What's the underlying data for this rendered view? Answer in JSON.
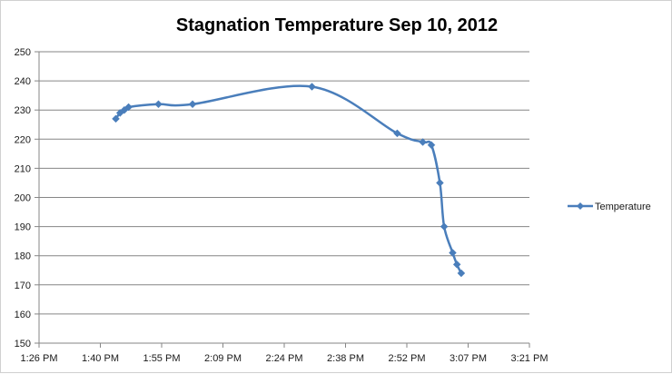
{
  "chart_data": {
    "type": "line",
    "title": "Stagnation Temperature Sep 10, 2012",
    "xlabel": "",
    "ylabel": "",
    "x_tick_labels": [
      "1:26 PM",
      "1:40 PM",
      "1:55 PM",
      "2:09 PM",
      "2:24 PM",
      "2:38 PM",
      "2:52 PM",
      "3:07 PM",
      "3:21 PM"
    ],
    "y_tick_labels": [
      "150",
      "160",
      "170",
      "180",
      "190",
      "200",
      "210",
      "220",
      "230",
      "240",
      "250"
    ],
    "ylim": [
      150,
      250
    ],
    "xlim": [
      "1:26 PM",
      "3:21 PM"
    ],
    "grid": "horizontal",
    "legend_position": "right",
    "series": [
      {
        "name": "Temperature",
        "color": "#4a7ebb",
        "marker": "diamond",
        "smooth": true,
        "points": [
          {
            "x": "1:44 PM",
            "y": 227
          },
          {
            "x": "1:45 PM",
            "y": 229
          },
          {
            "x": "1:46 PM",
            "y": 230
          },
          {
            "x": "1:47 PM",
            "y": 231
          },
          {
            "x": "1:54 PM",
            "y": 232
          },
          {
            "x": "2:02 PM",
            "y": 232
          },
          {
            "x": "2:30 PM",
            "y": 238
          },
          {
            "x": "2:50 PM",
            "y": 222
          },
          {
            "x": "2:56 PM",
            "y": 219
          },
          {
            "x": "2:58 PM",
            "y": 218
          },
          {
            "x": "3:00 PM",
            "y": 205
          },
          {
            "x": "3:01 PM",
            "y": 190
          },
          {
            "x": "3:03 PM",
            "y": 181
          },
          {
            "x": "3:04 PM",
            "y": 177
          },
          {
            "x": "3:05 PM",
            "y": 174
          }
        ]
      }
    ]
  }
}
